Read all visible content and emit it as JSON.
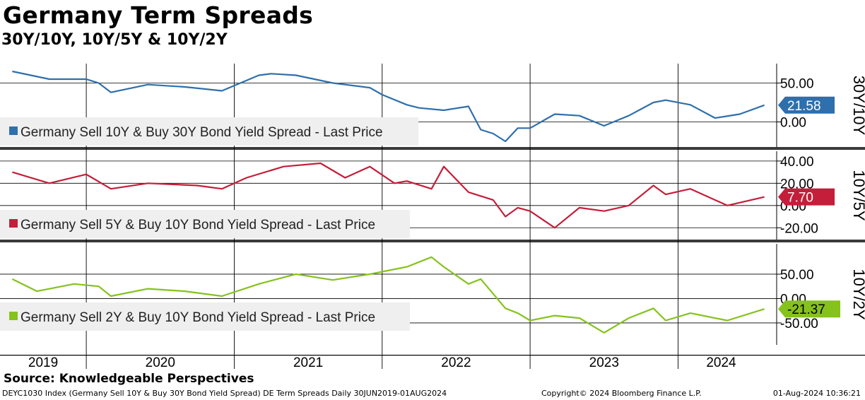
{
  "title": "Germany Term Spreads",
  "subtitle": "30Y/10Y, 10Y/5Y & 10Y/2Y",
  "source": "Source: Knowledgeable Perspectives",
  "footer": {
    "left": "DEYC1030 Index (Germany Sell 10Y & Buy 30Y Bond Yield Spread) DE Term Spreads  Daily 30JUN2019-01AUG2024",
    "center": "Copyright© 2024 Bloomberg Finance L.P.",
    "right": "01-Aug-2024 10:36:21"
  },
  "chart_data": [
    {
      "type": "line",
      "panel_label": "30Y/10Y",
      "series": [
        {
          "name": "Germany Sell 10Y & Buy 30Y Bond Yield Spread - Last Price",
          "color": "#2e6fac",
          "last_value": "21.58",
          "x": [
            "2019-07",
            "2019-10",
            "2020-01",
            "2020-02",
            "2020-03",
            "2020-06",
            "2020-09",
            "2020-12",
            "2021-03",
            "2021-04",
            "2021-06",
            "2021-09",
            "2021-12",
            "2022-01",
            "2022-03",
            "2022-04",
            "2022-06",
            "2022-08",
            "2022-09",
            "2022-10",
            "2022-11",
            "2022-12",
            "2023-01",
            "2023-03",
            "2023-05",
            "2023-07",
            "2023-09",
            "2023-11",
            "2023-12",
            "2024-02",
            "2024-04",
            "2024-06",
            "2024-08"
          ],
          "y": [
            65,
            55,
            55,
            50,
            38,
            48,
            45,
            40,
            60,
            62,
            60,
            50,
            44,
            35,
            22,
            18,
            15,
            20,
            -10,
            -15,
            -25,
            -8,
            -8,
            10,
            8,
            -5,
            8,
            25,
            28,
            22,
            5,
            10,
            21.58
          ]
        }
      ],
      "ylim": [
        -25,
        75
      ],
      "yticks": [
        0,
        50
      ],
      "ytick_labels": [
        "0.00",
        "50.00"
      ]
    },
    {
      "type": "line",
      "panel_label": "10Y/5Y",
      "series": [
        {
          "name": "Germany Sell 5Y & Buy 10Y Bond Yield Spread - Last Price",
          "color": "#c41e3a",
          "last_value": "7.70",
          "x": [
            "2019-07",
            "2019-10",
            "2020-01",
            "2020-03",
            "2020-06",
            "2020-10",
            "2020-12",
            "2021-02",
            "2021-05",
            "2021-08",
            "2021-10",
            "2021-12",
            "2022-02",
            "2022-03",
            "2022-05",
            "2022-06",
            "2022-08",
            "2022-10",
            "2022-11",
            "2022-12",
            "2023-01",
            "2023-03",
            "2023-05",
            "2023-07",
            "2023-09",
            "2023-11",
            "2023-12",
            "2024-02",
            "2024-05",
            "2024-08"
          ],
          "y": [
            30,
            20,
            28,
            15,
            20,
            18,
            15,
            25,
            35,
            38,
            25,
            35,
            20,
            22,
            15,
            35,
            12,
            5,
            -10,
            -2,
            -5,
            -20,
            -2,
            -5,
            0,
            18,
            10,
            15,
            0,
            7.7
          ]
        }
      ],
      "ylim": [
        -30,
        45
      ],
      "yticks": [
        -20,
        0,
        20,
        40
      ],
      "ytick_labels": [
        "-20.00",
        "0.00",
        "20.00",
        "40.00"
      ]
    },
    {
      "type": "line",
      "panel_label": "10Y/2Y",
      "series": [
        {
          "name": "Germany Sell 2Y & Buy 10Y Bond Yield Spread - Last Price",
          "color": "#85c21c",
          "last_value": "-21.37",
          "x": [
            "2019-07",
            "2019-09",
            "2019-12",
            "2020-02",
            "2020-03",
            "2020-06",
            "2020-09",
            "2020-12",
            "2021-03",
            "2021-06",
            "2021-09",
            "2021-12",
            "2022-03",
            "2022-05",
            "2022-06",
            "2022-08",
            "2022-09",
            "2022-11",
            "2022-12",
            "2023-01",
            "2023-03",
            "2023-05",
            "2023-07",
            "2023-09",
            "2023-11",
            "2023-12",
            "2024-02",
            "2024-05",
            "2024-08"
          ],
          "y": [
            40,
            15,
            30,
            25,
            5,
            20,
            15,
            5,
            30,
            50,
            38,
            50,
            65,
            85,
            65,
            30,
            40,
            -20,
            -30,
            -45,
            -35,
            -40,
            -70,
            -40,
            -20,
            -45,
            -30,
            -45,
            -21.37
          ]
        }
      ],
      "ylim": [
        -95,
        105
      ],
      "yticks": [
        -50,
        0,
        50
      ],
      "ytick_labels": [
        "-50.00",
        "0.00",
        "50.00"
      ]
    }
  ],
  "x_axis": {
    "labels": [
      "2019",
      "2020",
      "2021",
      "2022",
      "2023",
      "2024"
    ],
    "year_starts": [
      "2020-01",
      "2021-01",
      "2022-01",
      "2023-01",
      "2024-01"
    ],
    "range": [
      "2019-06",
      "2024-09"
    ]
  }
}
